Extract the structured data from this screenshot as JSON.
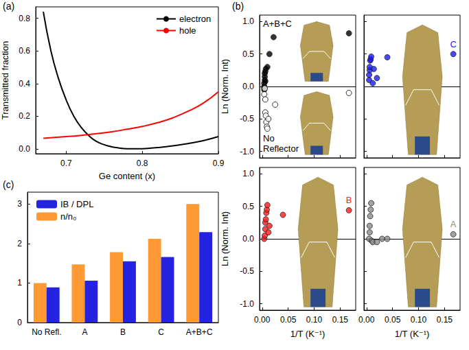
{
  "chart_data": [
    {
      "type": "line",
      "title": "(a)",
      "x_label": "Ge content (x)",
      "y_label": "Transmitted fraction",
      "xlim": [
        0.66,
        0.9
      ],
      "xticks": [
        0.7,
        0.8,
        0.9
      ],
      "ylim": [
        -0.03,
        0.87
      ],
      "yticks": [
        {
          "value": 0,
          "label": "0.0"
        },
        0.2,
        0.4,
        0.6,
        0.8
      ],
      "legend": "upper right",
      "series": [
        {
          "name": "electron",
          "color": "#000000",
          "x": [
            0.67,
            0.68,
            0.69,
            0.7,
            0.71,
            0.72,
            0.73,
            0.74,
            0.75,
            0.76,
            0.77,
            0.78,
            0.79,
            0.8,
            0.82,
            0.84,
            0.86,
            0.88,
            0.9
          ],
          "values": [
            0.84,
            0.6,
            0.43,
            0.3,
            0.2,
            0.13,
            0.08,
            0.045,
            0.025,
            0.012,
            0.005,
            0.001,
            0.0,
            0.001,
            0.008,
            0.018,
            0.032,
            0.05,
            0.075
          ]
        },
        {
          "name": "hole",
          "color": "#ff0000",
          "x": [
            0.67,
            0.7,
            0.72,
            0.74,
            0.76,
            0.78,
            0.8,
            0.82,
            0.84,
            0.86,
            0.88,
            0.9
          ],
          "values": [
            0.065,
            0.075,
            0.083,
            0.093,
            0.105,
            0.12,
            0.137,
            0.16,
            0.19,
            0.23,
            0.28,
            0.35
          ]
        }
      ]
    },
    {
      "type": "scatter",
      "title": "(b)",
      "x_label": "1/T (K⁻¹)",
      "y_label": "Ln (Norm. Int)",
      "xlim": [
        -0.005,
        0.18
      ],
      "xticks": [
        {
          "value": 0,
          "label": "0.00"
        },
        0.05,
        {
          "value": 0.1,
          "label": "0.10"
        },
        0.15
      ],
      "ylim": [
        -1.1,
        1.1
      ],
      "yticks": [
        {
          "value": -1,
          "label": "-1.0"
        },
        -0.5,
        {
          "value": 0,
          "label": "0.0"
        },
        0.5,
        {
          "value": 1,
          "label": "1.0"
        }
      ],
      "reference_y": 0,
      "panels": [
        {
          "tick_labels": "y",
          "series": [
            {
              "name": "A+B+C",
              "color": "#000000",
              "marker": "filled",
              "x": [
                0.004,
                0.004,
                0.004,
                0.004,
                0.005,
                0.005,
                0.005,
                0.006,
                0.006,
                0.007,
                0.01,
                0.014,
                0.022,
                0.167
              ],
              "values": [
                0.0,
                0.05,
                -0.05,
                -0.02,
                0.1,
                0.15,
                0.2,
                0.08,
                0.23,
                0.27,
                0.3,
                0.5,
                0.76,
                0.82
              ]
            },
            {
              "name": "No Reflector",
              "color": "#000000",
              "marker": "open",
              "x": [
                0.004,
                0.005,
                0.006,
                0.006,
                0.007,
                0.008,
                0.009,
                0.01,
                0.012,
                0.025,
                0.167
              ],
              "values": [
                -0.12,
                -0.03,
                -0.2,
                -0.4,
                -0.45,
                -0.55,
                -0.62,
                -0.65,
                -0.5,
                -0.28,
                -0.1
              ]
            }
          ]
        },
        {
          "tick_labels": false,
          "series": [
            {
              "name": "C",
              "color": "#1a1aff",
              "marker": "filled",
              "x": [
                0.005,
                0.005,
                0.006,
                0.006,
                0.007,
                0.008,
                0.009,
                0.012,
                0.014,
                0.02,
                0.04,
                0.167
              ],
              "values": [
                0.1,
                0.18,
                0.25,
                0.3,
                0.4,
                0.42,
                0.46,
                0.05,
                0.27,
                0.13,
                0.45,
                0.5
              ]
            }
          ]
        },
        {
          "series": [
            {
              "name": "B",
              "color": "#ff1a1a",
              "marker": "filled",
              "x": [
                0.004,
                0.005,
                0.006,
                0.006,
                0.007,
                0.008,
                0.009,
                0.01,
                0.012,
                0.014,
                0.04,
                0.167
              ],
              "values": [
                0.0,
                0.05,
                0.15,
                0.25,
                0.3,
                0.4,
                0.45,
                0.52,
                0.1,
                0.2,
                0.37,
                0.44
              ]
            }
          ]
        },
        {
          "tick_labels": "x",
          "series": [
            {
              "name": "A",
              "color": "#8c8c8c",
              "marker": "filled",
              "x": [
                0.005,
                0.006,
                0.006,
                0.007,
                0.008,
                0.009,
                0.01,
                0.012,
                0.02,
                0.03,
                0.04,
                0.167
              ],
              "values": [
                0.0,
                0.1,
                0.2,
                0.35,
                0.45,
                0.55,
                -0.03,
                -0.05,
                -0.05,
                0.0,
                0.0,
                0.07
              ]
            }
          ]
        }
      ]
    },
    {
      "type": "bar",
      "title": "(c)",
      "categories": [
        "No Refl.",
        "A",
        "B",
        "C",
        "A+B+C"
      ],
      "ylim": [
        0,
        3.3
      ],
      "yticks": [
        0,
        1,
        2,
        3
      ],
      "legend": "upper left",
      "legend_order": [
        "IB / DPL",
        "n/n₀"
      ],
      "series": [
        {
          "name": "n/n₀",
          "color": "#ff9933",
          "values": [
            1.0,
            1.47,
            1.78,
            2.12,
            3.0
          ]
        },
        {
          "name": "IB / DPL",
          "color": "#2424e0",
          "values": [
            0.89,
            1.06,
            1.55,
            1.66,
            2.29
          ]
        }
      ]
    }
  ]
}
